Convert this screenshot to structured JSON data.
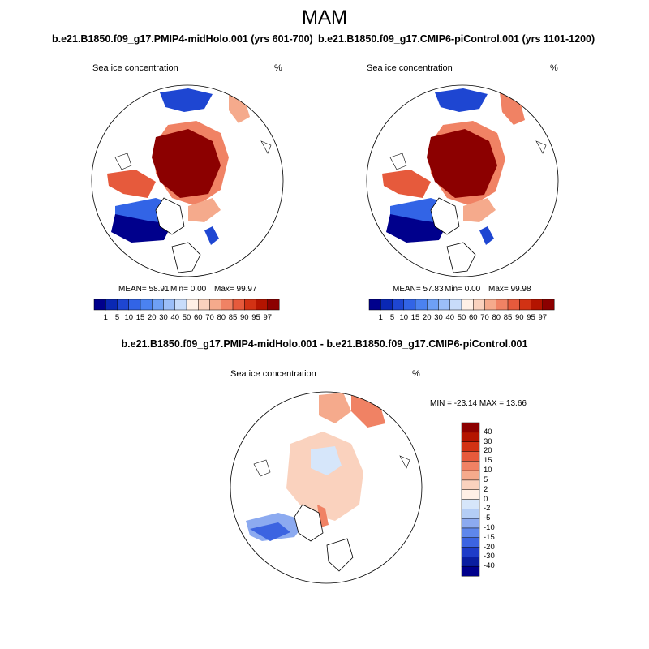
{
  "figure": {
    "title": "MAM",
    "colors": {
      "background": "#ffffff",
      "land_outline": "#000000"
    }
  },
  "panels": [
    {
      "title": "b.e21.B1850.f09_g17.PMIP4-midHolo.001 (yrs 601-700)",
      "variable_label": "Sea ice concentration",
      "units": "%",
      "stats": {
        "mean": "MEAN= 58.91",
        "min": "Min= 0.00",
        "max": "Max= 99.97"
      }
    },
    {
      "title": "b.e21.B1850.f09_g17.CMIP6-piControl.001 (yrs 1101-1200)",
      "variable_label": "Sea ice concentration",
      "units": "%",
      "stats": {
        "mean": "MEAN= 57.83",
        "min": "Min= 0.00",
        "max": "Max= 99.98"
      }
    }
  ],
  "diff_panel": {
    "title": "b.e21.B1850.f09_g17.PMIP4-midHolo.001 - b.e21.B1850.f09_g17.CMIP6-piControl.001",
    "variable_label": "Sea ice concentration",
    "units": "%",
    "minmax": "MIN = -23.14 MAX =  13.66"
  },
  "colorbar_main": {
    "labels": [
      "1",
      "5",
      "10",
      "15",
      "20",
      "30",
      "40",
      "50",
      "60",
      "70",
      "80",
      "85",
      "90",
      "95",
      "97"
    ],
    "colors": [
      "#00008c",
      "#0a28b4",
      "#1e46d2",
      "#3264e6",
      "#4b82f0",
      "#6ea0f5",
      "#9bbef8",
      "#c8dcfa",
      "#fff0e6",
      "#fad2be",
      "#f5aa8c",
      "#f08264",
      "#e65a3c",
      "#d23214",
      "#b41400",
      "#8c0000"
    ]
  },
  "colorbar_diff": {
    "labels": [
      "40",
      "30",
      "20",
      "15",
      "10",
      "5",
      "2",
      "0",
      "-2",
      "-5",
      "-10",
      "-15",
      "-20",
      "-30",
      "-40"
    ],
    "colors": [
      "#8c0000",
      "#b41400",
      "#d23214",
      "#e65a3c",
      "#f08264",
      "#f5aa8c",
      "#fad2be",
      "#fff0e6",
      "#d6e6fa",
      "#b4cdf5",
      "#8caaf0",
      "#5f87eb",
      "#3c64e1",
      "#1e3cc8",
      "#0a1ea0",
      "#00008c"
    ]
  }
}
